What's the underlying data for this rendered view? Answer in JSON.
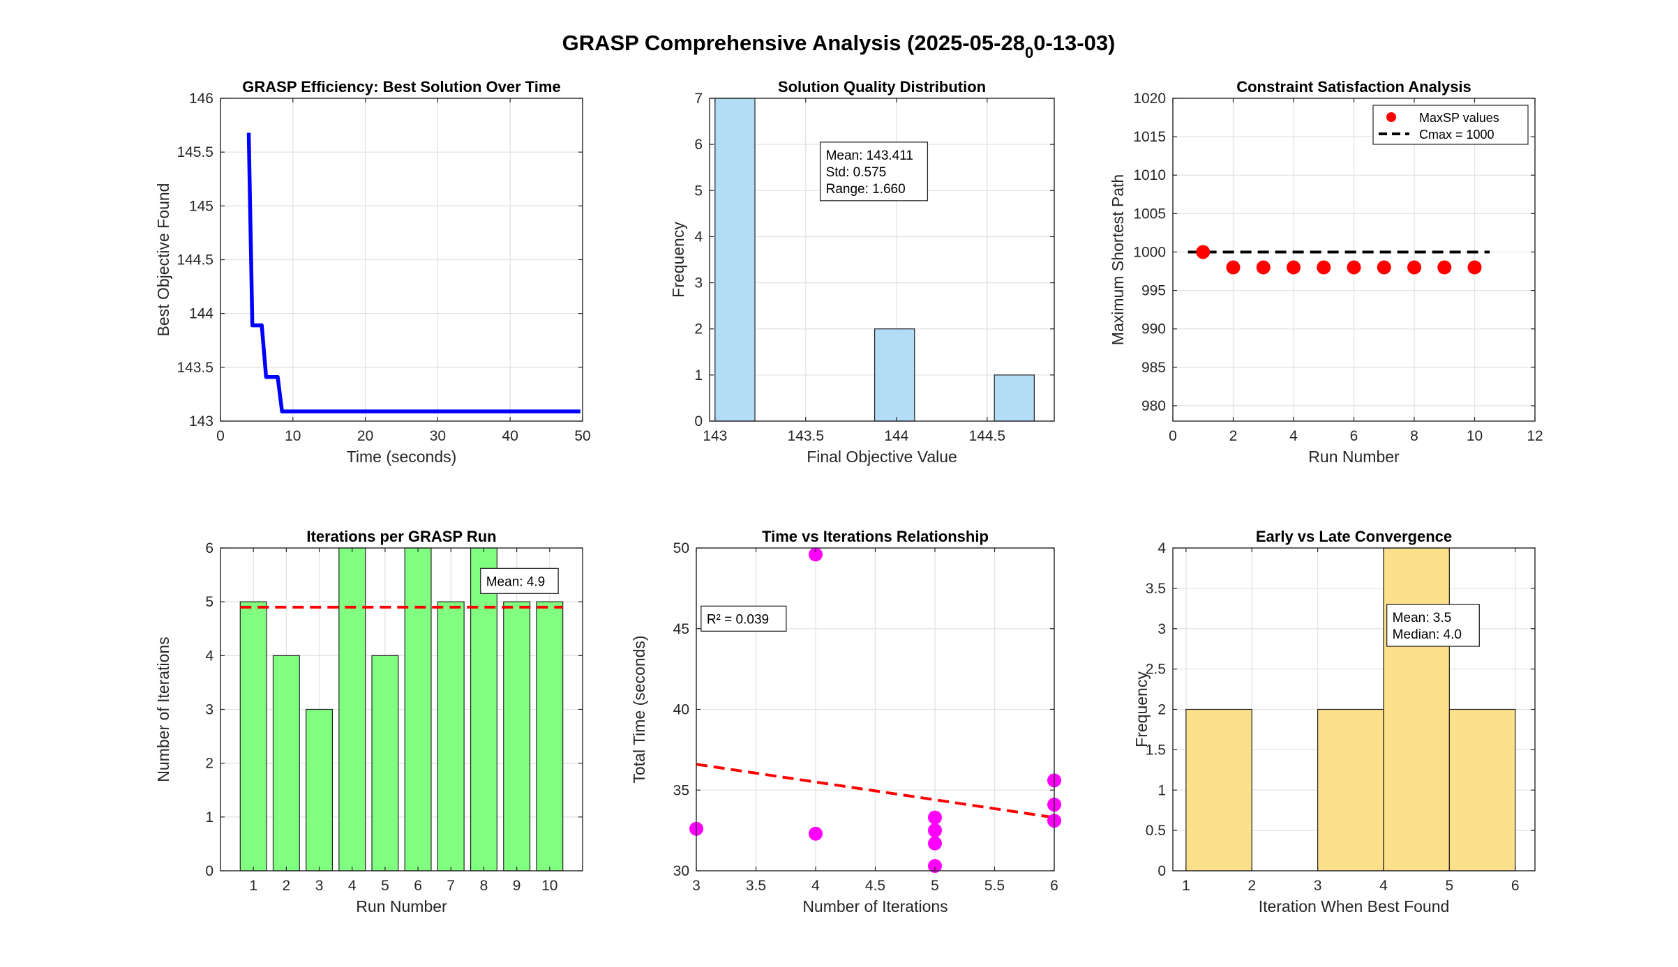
{
  "figure": {
    "title_main": "GRASP Comprehensive Analysis (2025-05-28",
    "title_sub": "0",
    "title_tail": "0-13-03)"
  },
  "chart_data": [
    {
      "type": "line",
      "title": "GRASP Efficiency: Best Solution Over Time",
      "xlabel": "Time (seconds)",
      "ylabel": "Best Objective Found",
      "xlim": [
        0,
        50
      ],
      "ylim": [
        143,
        146
      ],
      "xticks": [
        0,
        10,
        20,
        30,
        40,
        50
      ],
      "yticks": [
        143,
        143.5,
        144,
        144.5,
        145,
        145.5,
        146
      ],
      "ytick_labels": [
        "143",
        "143.5",
        "144",
        "144.5",
        "145",
        "145.5",
        "146"
      ],
      "grid": true,
      "color": "#0000ff",
      "series": [
        {
          "x": [
            3.9,
            4.4,
            5.7,
            6.3,
            7.9,
            8.5,
            49.7
          ],
          "y": [
            145.68,
            143.89,
            143.89,
            143.41,
            143.41,
            143.09,
            143.09
          ]
        }
      ]
    },
    {
      "type": "bar",
      "title": "Solution Quality Distribution",
      "xlabel": "Final Objective Value",
      "ylabel": "Frequency",
      "xlim": [
        142.97,
        144.87
      ],
      "ylim": [
        0,
        7
      ],
      "xticks": [
        143,
        143.5,
        144,
        144.5
      ],
      "xtick_labels": [
        "143",
        "143.5",
        "144",
        "144.5"
      ],
      "yticks": [
        0,
        1,
        2,
        3,
        4,
        5,
        6,
        7
      ],
      "grid": true,
      "color": "#b3dcf7",
      "bins": [
        {
          "x0": 143.0,
          "x1": 143.22,
          "count": 7
        },
        {
          "x0": 143.22,
          "x1": 143.44,
          "count": 0
        },
        {
          "x0": 143.44,
          "x1": 143.66,
          "count": 0
        },
        {
          "x0": 143.66,
          "x1": 143.88,
          "count": 0
        },
        {
          "x0": 143.88,
          "x1": 144.1,
          "count": 2
        },
        {
          "x0": 144.1,
          "x1": 144.32,
          "count": 0
        },
        {
          "x0": 144.32,
          "x1": 144.54,
          "count": 0
        },
        {
          "x0": 144.54,
          "x1": 144.76,
          "count": 1
        }
      ],
      "annotation": [
        "Mean: 143.411",
        "Std: 0.575",
        "Range: 1.660"
      ]
    },
    {
      "type": "scatter",
      "title": "Constraint Satisfaction Analysis",
      "xlabel": "Run Number",
      "ylabel": "Maximum Shortest Path",
      "xlim": [
        0,
        12
      ],
      "ylim": [
        978,
        1020
      ],
      "xticks": [
        0,
        2,
        4,
        6,
        8,
        10,
        12
      ],
      "yticks": [
        980,
        985,
        990,
        995,
        1000,
        1005,
        1010,
        1015,
        1020
      ],
      "grid": true,
      "legend_position": "top-right",
      "series": [
        {
          "name": "MaxSP values",
          "color": "#ff0000",
          "x": [
            1,
            2,
            3,
            4,
            5,
            6,
            7,
            8,
            9,
            10
          ],
          "y": [
            1000,
            998,
            998,
            998,
            998,
            998,
            998,
            998,
            998,
            998
          ]
        },
        {
          "name": "Cmax = 1000",
          "color": "#000000",
          "line": "dashed",
          "x": [
            0.5,
            10.5
          ],
          "y": [
            1000,
            1000
          ]
        }
      ]
    },
    {
      "type": "bar",
      "title": "Iterations per GRASP Run",
      "xlabel": "Run Number",
      "ylabel": "Number of Iterations",
      "xlim": [
        0,
        11
      ],
      "ylim": [
        0,
        6
      ],
      "categories": [
        "1",
        "2",
        "3",
        "4",
        "5",
        "6",
        "7",
        "8",
        "9",
        "10"
      ],
      "yticks": [
        0,
        1,
        2,
        3,
        4,
        5,
        6
      ],
      "grid": true,
      "color": "#80ff80",
      "values": [
        5,
        4,
        3,
        6,
        4,
        6,
        5,
        6,
        5,
        5
      ],
      "mean_line": 4.9,
      "annotation": [
        "Mean: 4.9"
      ]
    },
    {
      "type": "scatter",
      "title": "Time vs Iterations Relationship",
      "xlabel": "Number of Iterations",
      "ylabel": "Total Time (seconds)",
      "xlim": [
        3,
        6
      ],
      "ylim": [
        30,
        50
      ],
      "xticks": [
        3,
        3.5,
        4,
        4.5,
        5,
        5.5,
        6
      ],
      "yticks": [
        30,
        35,
        40,
        45,
        50
      ],
      "grid": true,
      "color": "#ff00ff",
      "series": [
        {
          "x": [
            3,
            4,
            4,
            5,
            5,
            5,
            5,
            6,
            6,
            6
          ],
          "y": [
            32.6,
            49.6,
            32.3,
            33.3,
            32.5,
            31.7,
            30.3,
            35.6,
            34.1,
            33.1
          ]
        },
        {
          "color": "#ff0000",
          "line": "dashed",
          "x": [
            3,
            6
          ],
          "y": [
            36.6,
            33.3
          ]
        }
      ],
      "annotation": [
        "R² = 0.039"
      ]
    },
    {
      "type": "bar",
      "title": "Early vs Late Convergence",
      "xlabel": "Iteration When Best Found",
      "ylabel": "Frequency",
      "xlim": [
        0.8,
        6.3
      ],
      "ylim": [
        0,
        4
      ],
      "xticks": [
        1,
        2,
        3,
        4,
        5,
        6
      ],
      "yticks": [
        0,
        0.5,
        1,
        1.5,
        2,
        2.5,
        3,
        3.5,
        4
      ],
      "grid": true,
      "color": "#fde08c",
      "bins": [
        {
          "x0": 1,
          "x1": 2,
          "count": 2
        },
        {
          "x0": 2,
          "x1": 3,
          "count": 0
        },
        {
          "x0": 3,
          "x1": 4,
          "count": 2
        },
        {
          "x0": 4,
          "x1": 5,
          "count": 4
        },
        {
          "x0": 5,
          "x1": 6,
          "count": 2
        }
      ],
      "annotation": [
        "Mean: 3.5",
        "Median: 4.0"
      ]
    }
  ]
}
